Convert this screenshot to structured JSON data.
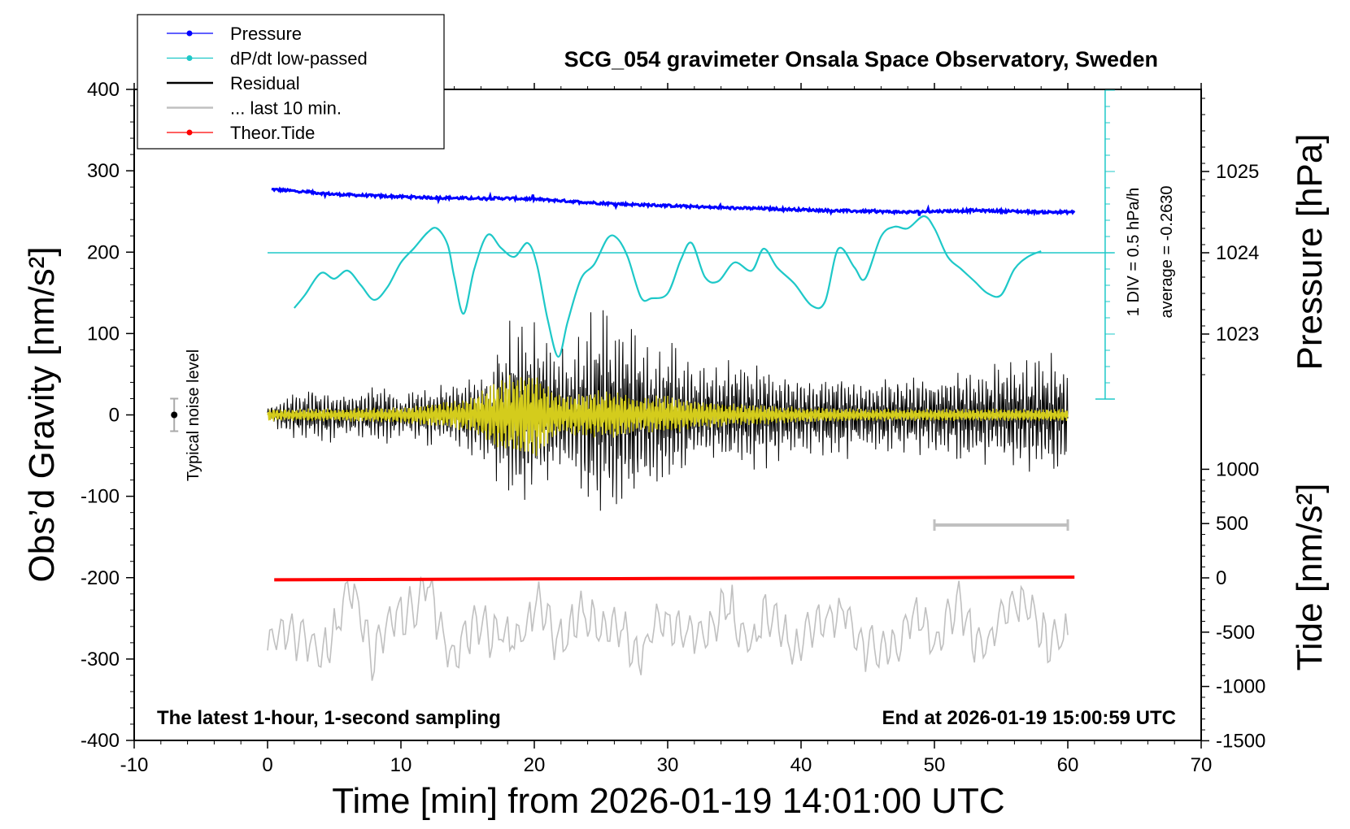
{
  "chart_data": {
    "type": "line",
    "title": "SCG_054 gravimeter Onsala Space Observatory, Sweden",
    "xlabel": "Time [min] from 2026-01-19 14:01:00 UTC",
    "xlim": [
      -10,
      70
    ],
    "xticks": [
      "-10",
      "0",
      "10",
      "20",
      "30",
      "40",
      "50",
      "60",
      "70"
    ],
    "ylabel_left": "Obs’d Gravity [nm/s²]",
    "ylim_left": [
      -400,
      400
    ],
    "yticks_left": [
      "-400",
      "-300",
      "-200",
      "-100",
      "0",
      "100",
      "200",
      "300",
      "400"
    ],
    "pressure_axis": {
      "label": "Pressure [hPa]",
      "ticks": [
        "1023",
        "1024",
        "1025"
      ],
      "tick_values": [
        1023,
        1024,
        1025
      ]
    },
    "tide_axis": {
      "label": "Tide [nm/s²]",
      "ticks": [
        "-1500",
        "-1000",
        "-500",
        "0",
        "500",
        "1000"
      ],
      "tick_values": [
        -1500,
        -1000,
        -500,
        0,
        500,
        1000
      ]
    },
    "legend": [
      {
        "label": "Pressure",
        "color": "#0000ff"
      },
      {
        "label": "dP/dt low-passed",
        "color": "#1ec8c8"
      },
      {
        "label": "Residual",
        "color": "#000000"
      },
      {
        "label": "... last 10 min.",
        "color": "#c0c0c0"
      },
      {
        "label": "Theor.Tide",
        "color": "#ff0000"
      }
    ],
    "dpdt_scale_label": "1 DIV = 0.5 hPa/h",
    "dpdt_average_label": "average = -0.2630",
    "noise_label": "Typical noise level",
    "noise_level": {
      "x": -7,
      "center": 0,
      "halfwidth": 20
    },
    "footer_left": "The latest 1-hour, 1-second sampling",
    "footer_right": "End at 2026-01-19 15:00:59 UTC",
    "last10_bracket": [
      50,
      60
    ],
    "series": [
      {
        "name": "Pressure",
        "unit": "hPa",
        "x": [
          0.3,
          2,
          5,
          8,
          10,
          12,
          15,
          18,
          20,
          22,
          25,
          28,
          30,
          33,
          35,
          38,
          40,
          42,
          45,
          48,
          50,
          53,
          56,
          58,
          60.5
        ],
        "values": [
          1024.78,
          1024.76,
          1024.72,
          1024.7,
          1024.69,
          1024.68,
          1024.67,
          1024.67,
          1024.66,
          1024.64,
          1024.61,
          1024.59,
          1024.58,
          1024.56,
          1024.55,
          1024.54,
          1024.53,
          1024.52,
          1024.51,
          1024.5,
          1024.51,
          1024.52,
          1024.51,
          1024.5,
          1024.5
        ]
      },
      {
        "name": "dP/dt low-passed",
        "unit": "DIV",
        "x": [
          2,
          2.8,
          4,
          5,
          6,
          7,
          8,
          9,
          10,
          11,
          12,
          12.7,
          13.5,
          14,
          14.7,
          15.5,
          16.5,
          17.5,
          18.5,
          19.5,
          20.2,
          21,
          21.8,
          22.5,
          23.5,
          24.5,
          25.5,
          26.2,
          27,
          28,
          28.8,
          30,
          31,
          31.8,
          32.8,
          33.8,
          35,
          36.3,
          37.2,
          38.2,
          39.5,
          40.8,
          41.8,
          42.8,
          44,
          44.8,
          46,
          47,
          48,
          49.2,
          50,
          51,
          52,
          53,
          54,
          55,
          56,
          57,
          58
        ],
        "values": [
          -0.68,
          -0.52,
          -0.25,
          -0.32,
          -0.22,
          -0.4,
          -0.58,
          -0.42,
          -0.12,
          0.06,
          0.25,
          0.3,
          0.1,
          -0.3,
          -0.75,
          -0.2,
          0.22,
          0.06,
          -0.05,
          0.12,
          -0.15,
          -0.82,
          -1.28,
          -0.85,
          -0.32,
          -0.14,
          0.18,
          0.18,
          -0.05,
          -0.55,
          -0.56,
          -0.5,
          -0.08,
          0.12,
          -0.3,
          -0.35,
          -0.12,
          -0.22,
          0.05,
          -0.18,
          -0.38,
          -0.65,
          -0.6,
          0.05,
          -0.18,
          -0.32,
          0.2,
          0.32,
          0.3,
          0.45,
          0.3,
          -0.05,
          -0.2,
          -0.35,
          -0.5,
          -0.52,
          -0.2,
          -0.05,
          0.02
        ]
      },
      {
        "name": "Residual",
        "unit": "nm/s²",
        "x": [
          0,
          2,
          4,
          6,
          8,
          10,
          12,
          14,
          16,
          17,
          18,
          19,
          20,
          21,
          22,
          23,
          24,
          25,
          26,
          27,
          28,
          29,
          30,
          32,
          34,
          36,
          38,
          40,
          42,
          44,
          46,
          48,
          50,
          52,
          54,
          56,
          58,
          60
        ],
        "values": [
          10,
          35,
          40,
          30,
          45,
          30,
          40,
          45,
          60,
          95,
          125,
          135,
          120,
          110,
          85,
          90,
          125,
          140,
          140,
          135,
          110,
          95,
          105,
          70,
          70,
          75,
          65,
          55,
          60,
          55,
          55,
          55,
          60,
          65,
          70,
          75,
          80,
          80
        ]
      },
      {
        "name": "... last 10 min.",
        "unit": "nm/s²",
        "x": [
          0,
          2,
          4,
          6,
          8,
          10,
          12,
          14,
          16,
          18,
          20,
          22,
          24,
          26,
          28,
          30,
          32,
          34,
          36,
          38,
          40,
          42,
          44,
          46,
          48,
          50,
          52,
          54,
          56,
          58,
          60
        ],
        "values": [
          -290,
          -260,
          -300,
          -220,
          -290,
          -240,
          -220,
          -300,
          -250,
          -280,
          -240,
          -270,
          -250,
          -260,
          -290,
          -250,
          -280,
          -240,
          -270,
          -250,
          -290,
          -240,
          -260,
          -300,
          -250,
          -270,
          -240,
          -290,
          -220,
          -270,
          -280
        ]
      },
      {
        "name": "Theor.Tide",
        "unit": "nm/s²",
        "x": [
          0.5,
          10,
          20,
          30,
          40,
          50,
          60.5
        ],
        "values": [
          -18,
          -14,
          -10,
          -6,
          -2,
          2,
          7
        ]
      },
      {
        "name": "Filtered residual (yellow)",
        "unit": "nm/s²",
        "x": [
          0,
          5,
          10,
          15,
          17,
          18,
          19,
          20,
          21,
          22,
          24,
          26,
          28,
          30,
          32,
          35,
          40,
          45,
          50,
          55,
          60
        ],
        "values": [
          8,
          8,
          10,
          20,
          40,
          50,
          58,
          55,
          40,
          25,
          30,
          32,
          22,
          25,
          18,
          14,
          10,
          8,
          8,
          8,
          8
        ]
      }
    ]
  }
}
